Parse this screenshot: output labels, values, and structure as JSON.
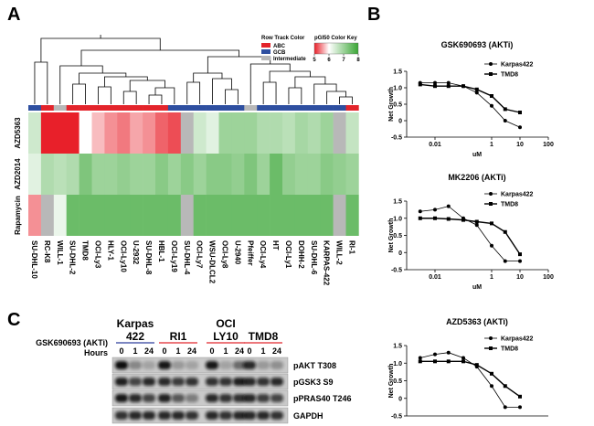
{
  "panels": [
    "A",
    "B",
    "C"
  ],
  "heatmap": {
    "type": "heatmap",
    "track_title": "Row Track Color",
    "track_legend": [
      {
        "name": "ABC",
        "color": "#e3242b"
      },
      {
        "name": "GCB",
        "color": "#2e4fa0"
      },
      {
        "name": "Intermediate",
        "color": "#b8b8b8"
      }
    ],
    "key_title": "pGI50 Color Key",
    "key_ticks": [
      5,
      6,
      7,
      8
    ],
    "color_stops": [
      {
        "value": 5,
        "color": "#e8202a"
      },
      {
        "value": 6,
        "color": "#ffffff"
      },
      {
        "value": 8,
        "color": "#3aa635"
      }
    ],
    "missing_color": "#b8b8b8",
    "columns": [
      "SU-DHL-10",
      "RC-K8",
      "WILL-1",
      "SU-DHL-2",
      "TMD8",
      "OCI-Ly3",
      "HLY-1",
      "OCI-Ly10",
      "U-2932",
      "SU-DHL-8",
      "HBL-1",
      "OCI-Ly19",
      "SU-DHL-4",
      "OCI-Ly7",
      "WSU-DLCL2",
      "OCI-Ly8",
      "U-2940",
      "Pfeiffer",
      "OCI-Ly4",
      "HT",
      "OCI-Ly1",
      "DOHH-2",
      "SU-DHL-6",
      "KARPAS-422",
      "WILL-2",
      "RI-1"
    ],
    "subtypes": [
      "GCB",
      "ABC",
      "Intermediate",
      "ABC",
      "ABC",
      "ABC",
      "ABC",
      "ABC",
      "ABC",
      "ABC",
      "ABC",
      "GCB",
      "GCB",
      "GCB",
      "GCB",
      "GCB",
      "GCB",
      "Intermediate",
      "GCB",
      "GCB",
      "GCB",
      "GCB",
      "GCB",
      "GCB",
      "GCB",
      "ABC"
    ],
    "rows": [
      "AZD5363",
      "AZD2014",
      "Rapamycin"
    ],
    "values": [
      [
        6.5,
        5,
        5,
        5,
        6,
        5.7,
        5.5,
        5.4,
        5.6,
        5.5,
        5.3,
        5.2,
        null,
        6.5,
        6.3,
        7,
        7,
        7,
        6.8,
        6.8,
        6.7,
        6.9,
        6.8,
        7,
        null,
        6.6
      ],
      [
        6.3,
        6.8,
        6.7,
        6.8,
        7.3,
        7,
        7,
        7.1,
        7,
        7,
        7.2,
        7,
        7.2,
        7,
        7.2,
        7.2,
        7.1,
        7.3,
        7,
        7.5,
        7.1,
        7,
        7,
        7.2,
        7.1,
        7
      ],
      [
        5.5,
        null,
        6.2,
        7.5,
        7.5,
        7.5,
        7.5,
        7.5,
        7.5,
        7.5,
        7.5,
        7.5,
        null,
        7.5,
        7.5,
        7.5,
        7.5,
        7.5,
        7.5,
        7.5,
        7.5,
        7.5,
        7.5,
        7.5,
        null,
        7.5
      ]
    ]
  },
  "curves": [
    {
      "type": "line",
      "title": "GSK690693 (AKTi)",
      "ylabel": "Net Growth",
      "xlabel": "uM",
      "xlog": true,
      "xlim": [
        0.001,
        100
      ],
      "xticks": [
        0.01,
        1,
        10,
        100
      ],
      "ylim": [
        -0.5,
        1.5
      ],
      "yticks": [
        -0.5,
        0,
        0.5,
        {
          "value": 1,
          "label": "1.0"
        },
        1.5
      ],
      "x": [
        0.003,
        0.01,
        0.03,
        0.1,
        0.3,
        1,
        3,
        10
      ],
      "series": [
        {
          "name": "Karpas422",
          "marker": "circle",
          "color": "#000000",
          "values": [
            1.15,
            1.15,
            1.15,
            1.05,
            0.85,
            0.45,
            0,
            -0.2
          ]
        },
        {
          "name": "TMD8",
          "marker": "square",
          "color": "#000000",
          "values": [
            1.1,
            1.05,
            1.05,
            1.05,
            0.95,
            0.75,
            0.35,
            0.25
          ]
        }
      ]
    },
    {
      "type": "line",
      "title": "MK2206 (AKTi)",
      "ylabel": "Net Growth",
      "xlabel": "uM",
      "xlog": true,
      "xlim": [
        0.001,
        100
      ],
      "xticks": [
        0.01,
        1,
        10,
        100
      ],
      "ylim": [
        -0.5,
        1.5
      ],
      "yticks": [
        -0.5,
        0,
        0.5,
        {
          "value": 1,
          "label": "1.0"
        },
        1.5
      ],
      "x": [
        0.003,
        0.01,
        0.03,
        0.1,
        0.3,
        1,
        3,
        10
      ],
      "series": [
        {
          "name": "Karpas422",
          "marker": "circle",
          "color": "#000000",
          "values": [
            1.2,
            1.25,
            1.35,
            1,
            0.8,
            0.2,
            -0.25,
            -0.25
          ]
        },
        {
          "name": "TMD8",
          "marker": "square",
          "color": "#000000",
          "values": [
            1,
            1,
            0.98,
            0.95,
            0.9,
            0.85,
            0.6,
            -0.05
          ]
        }
      ]
    },
    {
      "type": "line",
      "title": "AZD5363 (AKTi)",
      "ylabel": "Net Growth",
      "xlog": true,
      "xlim": [
        0.001,
        100
      ],
      "ylim": [
        -0.5,
        1.5
      ],
      "yticks": [
        -0.5,
        0,
        0.5,
        {
          "value": 1,
          "label": "1.0"
        },
        1.5
      ],
      "x": [
        0.003,
        0.01,
        0.03,
        0.1,
        0.3,
        1,
        3,
        10
      ],
      "series": [
        {
          "name": "Karpas422",
          "marker": "circle",
          "color": "#000000",
          "values": [
            1.15,
            1.25,
            1.3,
            1.15,
            0.9,
            0.35,
            -0.25,
            -0.25
          ]
        },
        {
          "name": "TMD8",
          "marker": "square",
          "color": "#000000",
          "values": [
            1.05,
            1.05,
            1.05,
            1.05,
            0.95,
            0.7,
            0.35,
            0.05
          ]
        }
      ]
    }
  ],
  "blot": {
    "treatment": "GSK690693 (AKTi)",
    "hours_label": "Hours",
    "groups": [
      {
        "lines": [
          "Karpas",
          "422"
        ],
        "color": "#2e3f9c",
        "hours": [
          0,
          1,
          24
        ]
      },
      {
        "lines": [
          "RI1"
        ],
        "color": "#e0262c",
        "hours": [
          0,
          1,
          24
        ]
      },
      {
        "lines": [
          "OCI",
          "LY10"
        ],
        "color": "#e0262c",
        "hours": [
          0,
          1,
          24
        ]
      },
      {
        "lines": [
          "TMD8"
        ],
        "color": "#e0262c",
        "hours": [
          0,
          1,
          24
        ]
      }
    ],
    "bands": [
      "pAKT T308",
      "pGSK3 S9",
      "pPRAS40 T246",
      "GAPDH"
    ]
  }
}
